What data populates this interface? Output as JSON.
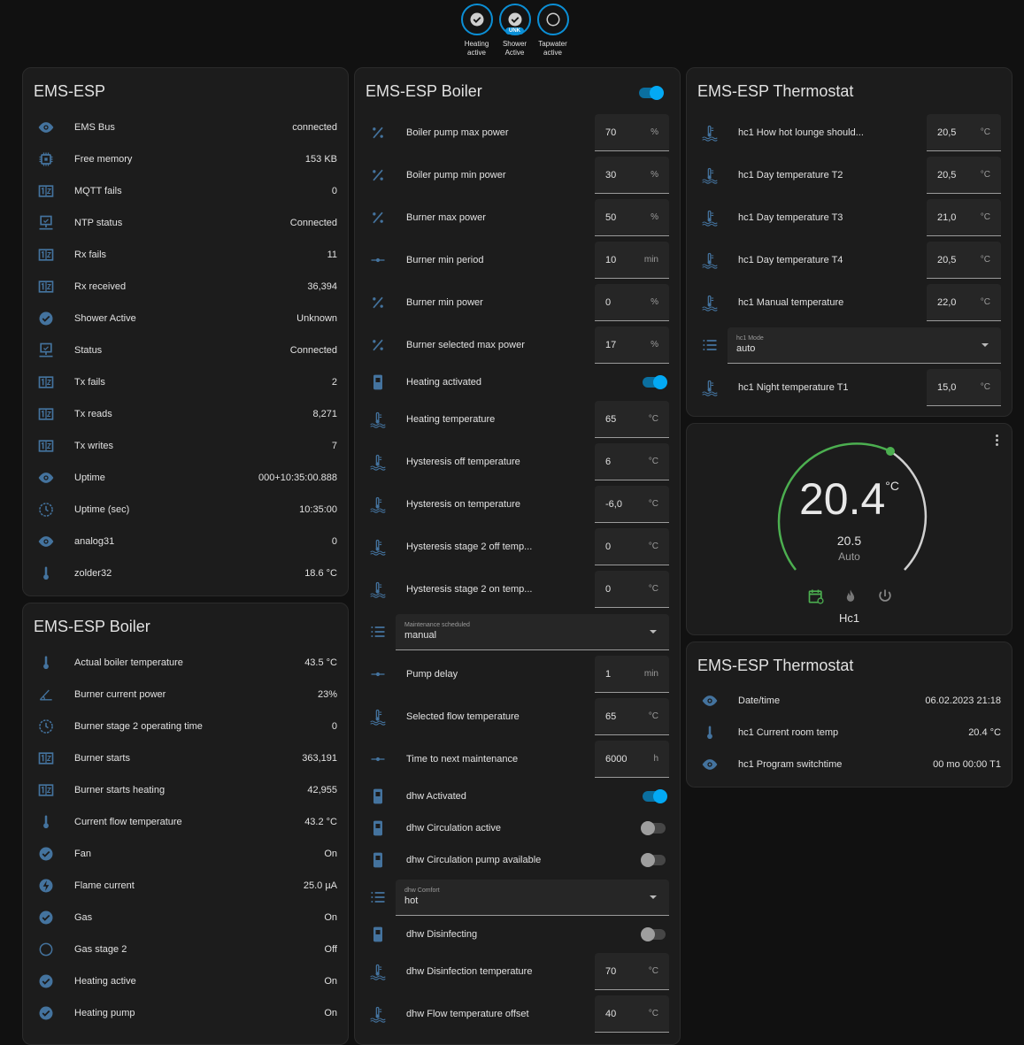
{
  "colors": {
    "accent": "#03a9f4",
    "icon": "#44739e",
    "climate_active": "#4caf50",
    "background": "#111111",
    "card": "#1c1c1c"
  },
  "badges": [
    {
      "label": "Heating active",
      "icon": "check-circle-icon",
      "state": "on"
    },
    {
      "label": "Shower Active",
      "icon": "check-circle-icon",
      "state": "unknown",
      "tag": "UNK"
    },
    {
      "label": "Tapwater active",
      "icon": "circle-outline-icon",
      "state": "off"
    }
  ],
  "ems_esp": {
    "title": "EMS-ESP",
    "rows": [
      {
        "icon": "eye",
        "name": "EMS Bus",
        "value": "connected"
      },
      {
        "icon": "chip",
        "name": "Free memory",
        "value": "153 KB"
      },
      {
        "icon": "counter",
        "name": "MQTT fails",
        "value": "0"
      },
      {
        "icon": "monitor",
        "name": "NTP status",
        "value": "Connected"
      },
      {
        "icon": "counter",
        "name": "Rx fails",
        "value": "11"
      },
      {
        "icon": "counter",
        "name": "Rx received",
        "value": "36,394"
      },
      {
        "icon": "check",
        "name": "Shower Active",
        "value": "Unknown"
      },
      {
        "icon": "monitor",
        "name": "Status",
        "value": "Connected"
      },
      {
        "icon": "counter",
        "name": "Tx fails",
        "value": "2"
      },
      {
        "icon": "counter",
        "name": "Tx reads",
        "value": "8,271"
      },
      {
        "icon": "counter",
        "name": "Tx writes",
        "value": "7"
      },
      {
        "icon": "eye",
        "name": "Uptime",
        "value": "000+10:35:00.888"
      },
      {
        "icon": "clock",
        "name": "Uptime (sec)",
        "value": "10:35:00"
      },
      {
        "icon": "eye",
        "name": "analog31",
        "value": "0"
      },
      {
        "icon": "thermo",
        "name": "zolder32",
        "value": "18.6 °C"
      }
    ]
  },
  "boiler_sensors": {
    "title": "EMS-ESP Boiler",
    "rows": [
      {
        "icon": "thermo",
        "name": "Actual boiler temperature",
        "value": "43.5 °C"
      },
      {
        "icon": "angle",
        "name": "Burner current power",
        "value": "23%"
      },
      {
        "icon": "clock",
        "name": "Burner stage 2 operating time",
        "value": "0"
      },
      {
        "icon": "counter",
        "name": "Burner starts",
        "value": "363,191"
      },
      {
        "icon": "counter",
        "name": "Burner starts heating",
        "value": "42,955"
      },
      {
        "icon": "thermo",
        "name": "Current flow temperature",
        "value": "43.2 °C"
      },
      {
        "icon": "check",
        "name": "Fan",
        "value": "On"
      },
      {
        "icon": "flash",
        "name": "Flame current",
        "value": "25.0 µA"
      },
      {
        "icon": "check",
        "name": "Gas",
        "value": "On"
      },
      {
        "icon": "circle",
        "name": "Gas stage 2",
        "value": "Off"
      },
      {
        "icon": "check",
        "name": "Heating active",
        "value": "On"
      },
      {
        "icon": "check",
        "name": "Heating pump",
        "value": "On"
      }
    ]
  },
  "boiler_controls": {
    "title": "EMS-ESP Boiler",
    "header_toggle": true,
    "rows": [
      {
        "type": "n",
        "icon": "percent",
        "name": "Boiler pump max power",
        "value": "70",
        "unit": "%"
      },
      {
        "type": "n",
        "icon": "percent",
        "name": "Boiler pump min power",
        "value": "30",
        "unit": "%"
      },
      {
        "type": "n",
        "icon": "percent",
        "name": "Burner max power",
        "value": "50",
        "unit": "%"
      },
      {
        "type": "n",
        "icon": "slider",
        "name": "Burner min period",
        "value": "10",
        "unit": "min"
      },
      {
        "type": "n",
        "icon": "percent",
        "name": "Burner min power",
        "value": "0",
        "unit": "%"
      },
      {
        "type": "n",
        "icon": "percent",
        "name": "Burner selected max power",
        "value": "17",
        "unit": "%"
      },
      {
        "type": "t",
        "icon": "switch",
        "name": "Heating activated",
        "on": true
      },
      {
        "type": "n",
        "icon": "water",
        "name": "Heating temperature",
        "value": "65",
        "unit": "°C"
      },
      {
        "type": "n",
        "icon": "water",
        "name": "Hysteresis off temperature",
        "value": "6",
        "unit": "°C"
      },
      {
        "type": "n",
        "icon": "water",
        "name": "Hysteresis on temperature",
        "value": "-6,0",
        "unit": "°C"
      },
      {
        "type": "n",
        "icon": "water",
        "name": "Hysteresis stage 2 off temp...",
        "value": "0",
        "unit": "°C"
      },
      {
        "type": "n",
        "icon": "water",
        "name": "Hysteresis stage 2 on temp...",
        "value": "0",
        "unit": "°C"
      },
      {
        "type": "s",
        "icon": "list",
        "name": "Maintenance scheduled",
        "value": "manual"
      },
      {
        "type": "n",
        "icon": "slider",
        "name": "Pump delay",
        "value": "1",
        "unit": "min"
      },
      {
        "type": "n",
        "icon": "water",
        "name": "Selected flow temperature",
        "value": "65",
        "unit": "°C"
      },
      {
        "type": "n",
        "icon": "slider",
        "name": "Time to next maintenance",
        "value": "6000",
        "unit": "h"
      },
      {
        "type": "t",
        "icon": "switch",
        "name": "dhw Activated",
        "on": true
      },
      {
        "type": "t",
        "icon": "switch",
        "name": "dhw Circulation active",
        "on": false
      },
      {
        "type": "t",
        "icon": "switch",
        "name": "dhw Circulation pump available",
        "on": false
      },
      {
        "type": "s",
        "icon": "list",
        "name": "dhw Comfort",
        "value": "hot"
      },
      {
        "type": "t",
        "icon": "switch",
        "name": "dhw Disinfecting",
        "on": false
      },
      {
        "type": "n",
        "icon": "water",
        "name": "dhw Disinfection temperature",
        "value": "70",
        "unit": "°C"
      },
      {
        "type": "n",
        "icon": "water",
        "name": "dhw Flow temperature offset",
        "value": "40",
        "unit": "°C"
      }
    ]
  },
  "thermostat_controls": {
    "title": "EMS-ESP Thermostat",
    "rows": [
      {
        "type": "n",
        "icon": "water",
        "name": "hc1 How hot lounge should...",
        "value": "20,5",
        "unit": "°C"
      },
      {
        "type": "n",
        "icon": "water",
        "name": "hc1 Day temperature T2",
        "value": "20,5",
        "unit": "°C"
      },
      {
        "type": "n",
        "icon": "water",
        "name": "hc1 Day temperature T3",
        "value": "21,0",
        "unit": "°C"
      },
      {
        "type": "n",
        "icon": "water",
        "name": "hc1 Day temperature T4",
        "value": "20,5",
        "unit": "°C"
      },
      {
        "type": "n",
        "icon": "water",
        "name": "hc1 Manual temperature",
        "value": "22,0",
        "unit": "°C"
      },
      {
        "type": "s",
        "icon": "list",
        "name": "hc1 Mode",
        "value": "auto"
      },
      {
        "type": "n",
        "icon": "water",
        "name": "hc1 Night temperature T1",
        "value": "15,0",
        "unit": "°C"
      }
    ]
  },
  "climate": {
    "current": "20.4",
    "unit": "°C",
    "target": "20.5",
    "mode": "Auto",
    "name": "Hc1",
    "modes": [
      "auto-schedule-icon",
      "heat-icon",
      "power-icon"
    ],
    "active_mode": "auto"
  },
  "thermostat_sensors": {
    "title": "EMS-ESP Thermostat",
    "rows": [
      {
        "icon": "eye",
        "name": "Date/time",
        "value": "06.02.2023 21:18"
      },
      {
        "icon": "thermo",
        "name": "hc1 Current room temp",
        "value": "20.4 °C"
      },
      {
        "icon": "eye",
        "name": "hc1 Program switchtime",
        "value": "00 mo 00:00 T1"
      }
    ]
  }
}
